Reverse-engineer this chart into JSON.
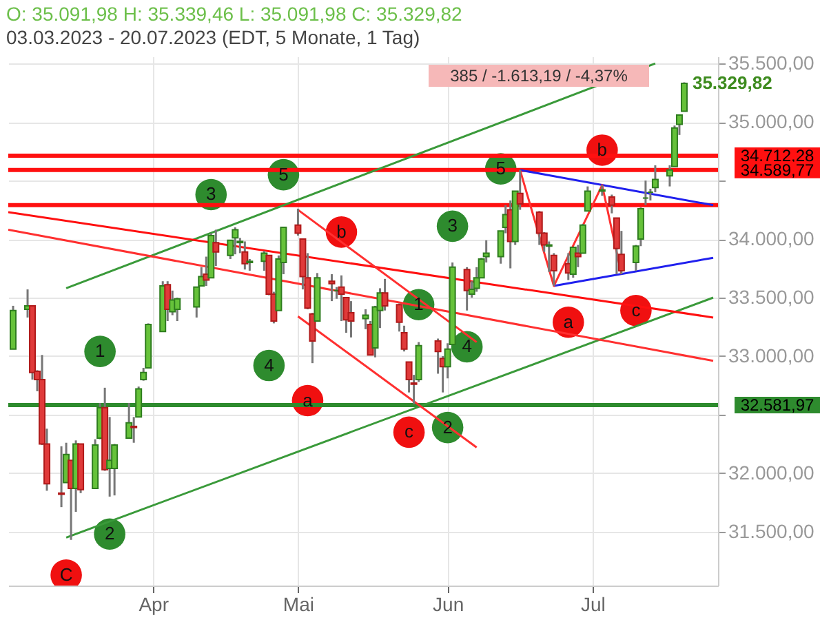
{
  "chart_data": {
    "type": "candlestick",
    "title": "O: 35.091,98  H: 35.339,46  L: 35.091,98  C: 35.329,82",
    "subtitle": "03.03.2023 - 20.07.2023  (EDT, 5 Monate, 1 Tag)",
    "x": [
      "2023-03-03",
      "2023-03-06",
      "2023-03-07",
      "2023-03-08",
      "2023-03-09",
      "2023-03-10",
      "2023-03-13",
      "2023-03-14",
      "2023-03-15",
      "2023-03-16",
      "2023-03-17",
      "2023-03-20",
      "2023-03-21",
      "2023-03-22",
      "2023-03-23",
      "2023-03-24",
      "2023-03-27",
      "2023-03-28",
      "2023-03-29",
      "2023-03-30",
      "2023-03-31",
      "2023-04-03",
      "2023-04-04",
      "2023-04-05",
      "2023-04-06",
      "2023-04-10",
      "2023-04-11",
      "2023-04-12",
      "2023-04-13",
      "2023-04-14",
      "2023-04-17",
      "2023-04-18",
      "2023-04-19",
      "2023-04-20",
      "2023-04-21",
      "2023-04-24",
      "2023-04-25",
      "2023-04-26",
      "2023-04-27",
      "2023-04-28",
      "2023-05-01",
      "2023-05-02",
      "2023-05-03",
      "2023-05-04",
      "2023-05-05",
      "2023-05-08",
      "2023-05-09",
      "2023-05-10",
      "2023-05-11",
      "2023-05-12",
      "2023-05-15",
      "2023-05-16",
      "2023-05-17",
      "2023-05-18",
      "2023-05-19",
      "2023-05-22",
      "2023-05-23",
      "2023-05-24",
      "2023-05-25",
      "2023-05-26",
      "2023-05-30",
      "2023-05-31",
      "2023-06-01",
      "2023-06-02",
      "2023-06-05",
      "2023-06-06",
      "2023-06-07",
      "2023-06-08",
      "2023-06-09",
      "2023-06-12",
      "2023-06-13",
      "2023-06-14",
      "2023-06-15",
      "2023-06-16",
      "2023-06-20",
      "2023-06-21",
      "2023-06-22",
      "2023-06-23",
      "2023-06-26",
      "2023-06-27",
      "2023-06-28",
      "2023-06-29",
      "2023-06-30",
      "2023-07-03",
      "2023-07-05",
      "2023-07-06",
      "2023-07-07",
      "2023-07-10",
      "2023-07-11",
      "2023-07-12",
      "2023-07-13",
      "2023-07-14",
      "2023-07-17",
      "2023-07-18",
      "2023-07-19",
      "2023-07-20"
    ],
    "ohlc": [
      [
        33060,
        33430,
        33060,
        33390
      ],
      [
        33400,
        33570,
        33330,
        33430
      ],
      [
        33430,
        33430,
        32800,
        32860
      ],
      [
        32870,
        32880,
        32700,
        32800
      ],
      [
        32800,
        33010,
        32240,
        32250
      ],
      [
        32250,
        32380,
        31850,
        31910
      ],
      [
        31830,
        32230,
        31710,
        31820
      ],
      [
        31920,
        32260,
        31920,
        32160
      ],
      [
        32110,
        32110,
        31430,
        31870
      ],
      [
        31870,
        32280,
        31670,
        32250
      ],
      [
        32250,
        32250,
        31830,
        31860
      ],
      [
        31870,
        32290,
        31870,
        32240
      ],
      [
        32300,
        32600,
        32290,
        32560
      ],
      [
        32560,
        32730,
        32020,
        32030
      ],
      [
        32040,
        32480,
        31800,
        32110
      ],
      [
        32040,
        32250,
        31810,
        32240
      ],
      [
        32300,
        32600,
        32300,
        32430
      ],
      [
        32400,
        32480,
        32260,
        32390
      ],
      [
        32480,
        32740,
        32480,
        32720
      ],
      [
        32800,
        32900,
        32790,
        32860
      ],
      [
        32900,
        33280,
        32900,
        33270
      ],
      [
        33210,
        33640,
        33210,
        33600
      ],
      [
        33610,
        33640,
        33300,
        33400
      ],
      [
        33380,
        33560,
        33350,
        33480
      ],
      [
        33400,
        33500,
        33300,
        33490
      ],
      [
        33420,
        33590,
        33330,
        33590
      ],
      [
        33600,
        33760,
        33600,
        33680
      ],
      [
        33700,
        33850,
        33600,
        33650
      ],
      [
        33670,
        34050,
        33670,
        34030
      ],
      [
        33970,
        34080,
        33770,
        33890
      ],
      [
        33860,
        33990,
        33830,
        33990
      ],
      [
        34010,
        34100,
        33870,
        34080
      ],
      [
        33970,
        34010,
        33880,
        33980
      ],
      [
        33890,
        33980,
        33740,
        33790
      ],
      [
        33800,
        33830,
        33730,
        33810
      ],
      [
        33810,
        33900,
        33730,
        33880
      ],
      [
        33860,
        33860,
        33520,
        33530
      ],
      [
        33530,
        33550,
        33280,
        33300
      ],
      [
        33390,
        33860,
        33390,
        33830
      ],
      [
        33800,
        34100,
        33700,
        34100
      ],
      [
        34120,
        34260,
        34030,
        34050
      ],
      [
        34000,
        34000,
        33570,
        33680
      ],
      [
        33670,
        33880,
        33400,
        33410
      ],
      [
        33360,
        33370,
        32940,
        33130
      ],
      [
        33300,
        33710,
        33300,
        33670
      ],
      [
        33640,
        33700,
        33470,
        33620
      ],
      [
        33560,
        33590,
        33490,
        33560
      ],
      [
        33590,
        33690,
        33300,
        33530
      ],
      [
        33500,
        33500,
        33200,
        33310
      ],
      [
        33370,
        33470,
        33160,
        33300
      ],
      [
        33320,
        33400,
        33230,
        33350
      ],
      [
        33270,
        33300,
        33010,
        33010
      ],
      [
        33070,
        33430,
        32990,
        33420
      ],
      [
        33390,
        33580,
        33240,
        33540
      ],
      [
        33540,
        33660,
        33390,
        33430
      ],
      [
        33440,
        33450,
        33210,
        33290
      ],
      [
        33200,
        33260,
        33040,
        33060
      ],
      [
        32950,
        32950,
        32690,
        32800
      ],
      [
        32770,
        32840,
        32590,
        32760
      ],
      [
        32800,
        33120,
        32780,
        33090
      ],
      [
        33130,
        33150,
        32850,
        33040
      ],
      [
        32980,
        33000,
        32690,
        32910
      ],
      [
        32910,
        33110,
        32810,
        33060
      ],
      [
        33100,
        33800,
        33100,
        33760
      ],
      [
        33740,
        33760,
        33390,
        33560
      ],
      [
        33530,
        33640,
        33500,
        33570
      ],
      [
        33580,
        33760,
        33550,
        33670
      ],
      [
        33670,
        33840,
        33670,
        33830
      ],
      [
        33850,
        33990,
        33800,
        33880
      ],
      [
        33850,
        34070,
        33790,
        34070
      ],
      [
        34100,
        34290,
        34050,
        34210
      ],
      [
        34250,
        34330,
        33750,
        33980
      ],
      [
        33980,
        34410,
        33950,
        34410
      ],
      [
        34390,
        34590,
        34250,
        34300
      ],
      [
        34230,
        34240,
        33950,
        34050
      ],
      [
        34050,
        34060,
        33890,
        33950
      ],
      [
        33940,
        33980,
        33720,
        33950
      ],
      [
        33860,
        33880,
        33600,
        33730
      ],
      [
        33790,
        33880,
        33650,
        33710
      ],
      [
        33700,
        33930,
        33670,
        33930
      ],
      [
        33880,
        33950,
        33760,
        33850
      ],
      [
        33880,
        34130,
        33880,
        34120
      ],
      [
        34240,
        34450,
        34240,
        34410
      ],
      [
        34410,
        34460,
        34370,
        34420
      ],
      [
        34360,
        34380,
        34220,
        34290
      ],
      [
        34180,
        34180,
        33700,
        33920
      ],
      [
        33870,
        34070,
        33700,
        33730
      ],
      [
        33800,
        33950,
        33730,
        33940
      ],
      [
        34000,
        34270,
        33940,
        34260
      ],
      [
        34350,
        34500,
        34290,
        34350
      ],
      [
        34400,
        34430,
        34330,
        34400
      ],
      [
        34440,
        34630,
        34400,
        34510
      ],
      [
        34540,
        34630,
        34450,
        34590
      ],
      [
        34620,
        34970,
        34620,
        34950
      ],
      [
        34980,
        35060,
        34890,
        35060
      ],
      [
        35091.98,
        35339.46,
        35091.98,
        35329.82
      ]
    ],
    "series": [
      {
        "type": "line",
        "color": "#3a9a3a",
        "x": [
          "2023-03-14",
          "2023-07-14"
        ],
        "values": [
          33580,
          35500
        ]
      },
      {
        "type": "line",
        "color": "#3a9a3a",
        "x": [
          "2023-03-14",
          "2023-07-26"
        ],
        "values": [
          31450,
          33500
        ]
      },
      {
        "type": "line",
        "color": "#ff1010",
        "x": [
          "2023-03-02",
          "2023-07-26"
        ],
        "values": [
          34230,
          33330
        ]
      },
      {
        "type": "line",
        "color": "#ff3030",
        "x": [
          "2023-03-02",
          "2023-07-26"
        ],
        "values": [
          34080,
          32960
        ]
      },
      {
        "type": "line",
        "color": "#ff3030",
        "x": [
          "2023-05-01",
          "2023-06-07"
        ],
        "values": [
          34250,
          33120
        ]
      },
      {
        "type": "line",
        "color": "#ff3030",
        "x": [
          "2023-05-01",
          "2023-06-07"
        ],
        "values": [
          33340,
          32220
        ]
      },
      {
        "type": "line",
        "color": "#2020ee",
        "x": [
          "2023-06-16",
          "2023-07-26"
        ],
        "values": [
          34590,
          34290
        ]
      },
      {
        "type": "line",
        "color": "#2020ee",
        "x": [
          "2023-06-23",
          "2023-07-26"
        ],
        "values": [
          33600,
          33840
        ]
      },
      {
        "type": "line",
        "color": "#ff3030",
        "x": [
          "2023-06-16",
          "2023-06-23",
          "2023-07-03",
          "2023-07-07"
        ],
        "values": [
          34590,
          33600,
          34460,
          33700
        ]
      },
      {
        "type": "scatter",
        "marker": "circle",
        "color": "#2e8b2e",
        "x": [
          "2023-03-21",
          "2023-03-23",
          "2023-04-13",
          "2023-04-25",
          "2023-04-28",
          "2023-05-26",
          "2023-06-01",
          "2023-06-02",
          "2023-06-05",
          "2023-06-12"
        ],
        "values": [
          33040,
          31480,
          34380,
          32920,
          34550,
          33440,
          32390,
          34110,
          33080,
          34600
        ]
      },
      {
        "type": "scatter",
        "marker": "circle",
        "color": "#f01010",
        "x": [
          "2023-03-14",
          "2023-05-03",
          "2023-05-10",
          "2023-05-24",
          "2023-06-26",
          "2023-07-03",
          "2023-07-10"
        ],
        "values": [
          31130,
          32620,
          34060,
          32350,
          33290,
          34760,
          33390
        ]
      }
    ],
    "ref_lines": [
      {
        "axis": "y",
        "value": 34712.28,
        "label": "34.712,28",
        "color": "#ff1010"
      },
      {
        "axis": "y",
        "value": 34589.77,
        "label": "34.589,77",
        "color": "#ff1010"
      },
      {
        "axis": "y",
        "value": 34290,
        "label": null,
        "color": "#ff1010"
      },
      {
        "axis": "y",
        "value": 32581.97,
        "label": "32.581,97",
        "color": "#2e8b2e"
      }
    ],
    "annotations": [
      "385 / -1.613,19 / -4,37%",
      {
        "text": "35.329,82",
        "x": "2023-07-20",
        "y": 35329.82
      },
      {
        "text": "1",
        "x": "2023-03-21",
        "y": 33040
      },
      {
        "text": "2",
        "x": "2023-03-23",
        "y": 31480
      },
      {
        "text": "3",
        "x": "2023-04-13",
        "y": 34380
      },
      {
        "text": "4",
        "x": "2023-04-25",
        "y": 32920
      },
      {
        "text": "5",
        "x": "2023-04-28",
        "y": 34550
      },
      {
        "text": "1",
        "x": "2023-05-26",
        "y": 33440
      },
      {
        "text": "2",
        "x": "2023-06-01",
        "y": 32390
      },
      {
        "text": "3",
        "x": "2023-06-02",
        "y": 34110
      },
      {
        "text": "4",
        "x": "2023-06-05",
        "y": 33080
      },
      {
        "text": "5",
        "x": "2023-06-12",
        "y": 34600
      },
      {
        "text": "C",
        "x": "2023-03-14",
        "y": 31130
      },
      {
        "text": "a",
        "x": "2023-05-03",
        "y": 32620
      },
      {
        "text": "b",
        "x": "2023-05-10",
        "y": 34060
      },
      {
        "text": "c",
        "x": "2023-05-24",
        "y": 32350
      },
      {
        "text": "a",
        "x": "2023-06-26",
        "y": 33290
      },
      {
        "text": "b",
        "x": "2023-07-03",
        "y": 34760
      },
      {
        "text": "c",
        "x": "2023-07-10",
        "y": 33390
      }
    ],
    "xlim": [
      "2023-03-02",
      "2023-07-27"
    ],
    "xticks": [
      {
        "value": "2023-04-01",
        "label": "Apr"
      },
      {
        "value": "2023-05-01",
        "label": "Mai"
      },
      {
        "value": "2023-06-01",
        "label": "Jun"
      },
      {
        "value": "2023-07-01",
        "label": "Jul"
      }
    ],
    "ylim": [
      31040,
      35560
    ],
    "yticks": [
      {
        "value": 31500,
        "label": "31.500,00"
      },
      {
        "value": 32000,
        "label": "32.000,00"
      },
      {
        "value": 32500,
        "label": null
      },
      {
        "value": 33000,
        "label": "33.000,00"
      },
      {
        "value": 33500,
        "label": "33.500,00"
      },
      {
        "value": 34000,
        "label": "34.000,00"
      },
      {
        "value": 34500,
        "label": null
      },
      {
        "value": 35000,
        "label": "35.000,00"
      },
      {
        "value": 35500,
        "label": "35.500,00"
      }
    ],
    "grid": true
  }
}
